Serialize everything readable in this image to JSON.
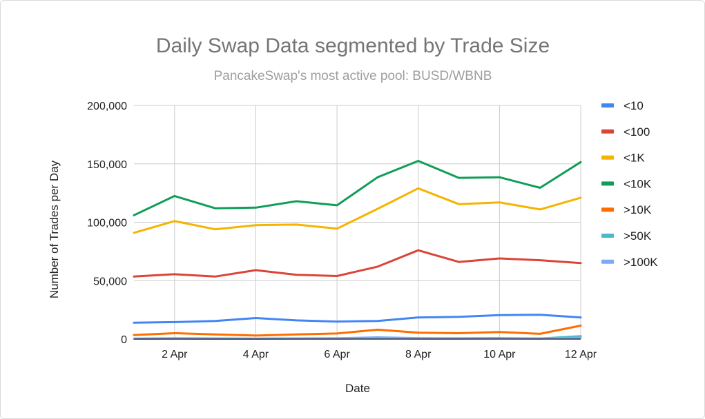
{
  "chart_data": {
    "type": "line",
    "title": "Daily Swap Data segmented by Trade Size",
    "subtitle": "PancakeSwap's most active pool: BUSD/WBNB",
    "xlabel": "Date",
    "ylabel": "Number of Trades per Day",
    "x": [
      "1 Apr",
      "2 Apr",
      "3 Apr",
      "4 Apr",
      "5 Apr",
      "6 Apr",
      "7 Apr",
      "8 Apr",
      "9 Apr",
      "10 Apr",
      "11 Apr",
      "12 Apr"
    ],
    "x_tick_labels": [
      "2 Apr",
      "4 Apr",
      "6 Apr",
      "8 Apr",
      "10 Apr",
      "12 Apr"
    ],
    "ylim": [
      0,
      200000
    ],
    "y_ticks": [
      0,
      50000,
      100000,
      150000,
      200000
    ],
    "y_tick_labels": [
      "0",
      "50,000",
      "100,000",
      "150,000",
      "200,000"
    ],
    "grid": true,
    "legend_position": "right",
    "series": [
      {
        "name": "<10",
        "color": "#4285f4",
        "values": [
          14000,
          14500,
          15500,
          18000,
          16000,
          15000,
          15500,
          18500,
          19000,
          20500,
          20800,
          18500
        ]
      },
      {
        "name": "<100",
        "color": "#db4437",
        "values": [
          53500,
          55500,
          53500,
          59000,
          55000,
          54000,
          62000,
          76000,
          66000,
          69000,
          67500,
          65000
        ]
      },
      {
        "name": "<1K",
        "color": "#f4b400",
        "values": [
          91000,
          101000,
          94000,
          97500,
          98000,
          94500,
          111500,
          129000,
          115500,
          117000,
          111000,
          121000
        ]
      },
      {
        "name": "<10K",
        "color": "#0f9d58",
        "values": [
          106000,
          122500,
          112000,
          112500,
          118000,
          114500,
          138500,
          152500,
          138000,
          138500,
          129500,
          151500
        ]
      },
      {
        "name": ">10K",
        "color": "#ff6d00",
        "values": [
          3500,
          5000,
          4000,
          3000,
          4000,
          4800,
          8000,
          5500,
          5000,
          6000,
          4500,
          11500
        ]
      },
      {
        "name": ">50K",
        "color": "#46bdc6",
        "values": [
          300,
          400,
          300,
          300,
          400,
          400,
          700,
          500,
          500,
          600,
          500,
          2500
        ]
      },
      {
        "name": ">100K",
        "color": "#7baaf7",
        "values": [
          500,
          700,
          600,
          500,
          600,
          700,
          1500,
          800,
          700,
          900,
          600,
          1200
        ]
      }
    ]
  }
}
